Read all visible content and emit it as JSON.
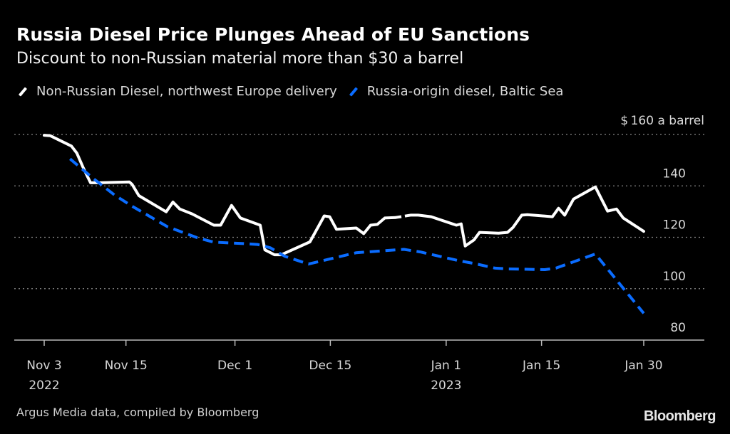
{
  "header": {
    "title": "Russia Diesel Price Plunges Ahead of EU Sanctions",
    "subtitle": "Discount to non-Russian material more than $30 a barrel"
  },
  "footer": {
    "source": "Argus Media data, compiled by Bloomberg",
    "logo": "Bloomberg"
  },
  "colors": {
    "background": "#000000",
    "non_russian": "#ffffff",
    "russian": "#0a6cff",
    "grid": "#888888",
    "axis": "#bbbbbb"
  },
  "chart_data": {
    "type": "line",
    "title": "Russia Diesel Price Plunges Ahead of EU Sanctions",
    "subtitle": "Discount to non-Russian material more than $30 a barrel",
    "xlabel": "",
    "ylabel": "$ a barrel",
    "y_unit_label": "a barrel",
    "y_prefix": "$",
    "ylim": [
      80,
      160
    ],
    "yticks": [
      80,
      100,
      120,
      140,
      160
    ],
    "y_axis_position": "right",
    "grid": true,
    "legend_position": "top-left",
    "x_start": "2022-11-03",
    "x_end": "2023-01-30",
    "xticks": [
      {
        "day": 0,
        "label": "Nov 3",
        "sublabel": "2022"
      },
      {
        "day": 12,
        "label": "Nov 15",
        "sublabel": ""
      },
      {
        "day": 28,
        "label": "Dec 1",
        "sublabel": ""
      },
      {
        "day": 42,
        "label": "Dec 15",
        "sublabel": ""
      },
      {
        "day": 59,
        "label": "Jan 1",
        "sublabel": "2023"
      },
      {
        "day": 73,
        "label": "Jan 15",
        "sublabel": ""
      },
      {
        "day": 88,
        "label": "Jan 30",
        "sublabel": ""
      }
    ],
    "series": [
      {
        "name": "Non-Russian Diesel, northwest Europe delivery",
        "style": "solid",
        "color": "#ffffff",
        "gap_dashed_between_days": [
          51.6,
          53.8
        ],
        "points": [
          [
            0,
            159.7
          ],
          [
            0.9,
            159.5
          ],
          [
            4.0,
            155.5
          ],
          [
            4.8,
            152.7
          ],
          [
            5.7,
            147.2
          ],
          [
            6.8,
            141.2
          ],
          [
            8.0,
            141.2
          ],
          [
            12.5,
            141.5
          ],
          [
            12.9,
            140.6
          ],
          [
            13.9,
            136.2
          ],
          [
            17.9,
            129.9
          ],
          [
            18.9,
            133.7
          ],
          [
            19.9,
            131.0
          ],
          [
            21.7,
            129.1
          ],
          [
            24.9,
            124.7
          ],
          [
            25.9,
            124.7
          ],
          [
            27.5,
            132.4
          ],
          [
            28.8,
            127.5
          ],
          [
            31.7,
            124.7
          ],
          [
            32.4,
            115.1
          ],
          [
            33.8,
            113.2
          ],
          [
            34.8,
            113.2
          ],
          [
            39.0,
            118.2
          ],
          [
            41.1,
            128.3
          ],
          [
            41.9,
            128.0
          ],
          [
            42.9,
            123.1
          ],
          [
            45.8,
            123.6
          ],
          [
            46.9,
            121.4
          ],
          [
            47.9,
            124.7
          ],
          [
            48.9,
            125.0
          ],
          [
            50.0,
            127.5
          ],
          [
            51.6,
            127.7
          ],
          [
            53.8,
            128.6
          ],
          [
            54.9,
            128.6
          ],
          [
            56.8,
            128.0
          ],
          [
            60.5,
            124.7
          ],
          [
            61.2,
            125.2
          ],
          [
            61.8,
            116.6
          ],
          [
            63.1,
            119.0
          ],
          [
            63.9,
            121.9
          ],
          [
            66.7,
            121.6
          ],
          [
            68.0,
            121.9
          ],
          [
            68.8,
            123.8
          ],
          [
            70.1,
            128.6
          ],
          [
            70.9,
            128.8
          ],
          [
            74.6,
            128.0
          ],
          [
            75.5,
            131.3
          ],
          [
            76.4,
            128.6
          ],
          [
            77.7,
            134.9
          ],
          [
            80.9,
            139.6
          ],
          [
            82.7,
            130.2
          ],
          [
            84.0,
            131.0
          ],
          [
            85.0,
            127.5
          ],
          [
            88.0,
            122.3
          ]
        ]
      },
      {
        "name": "Russia-origin diesel, Baltic Sea",
        "style": "dashed",
        "color": "#0a6cff",
        "points": [
          [
            3.8,
            150.5
          ],
          [
            7.1,
            143.1
          ],
          [
            10.3,
            136.5
          ],
          [
            12.9,
            132.1
          ],
          [
            18.1,
            124.1
          ],
          [
            22.4,
            119.9
          ],
          [
            24.9,
            118.1
          ],
          [
            29.0,
            117.6
          ],
          [
            31.3,
            117.2
          ],
          [
            33.2,
            115.9
          ],
          [
            35.3,
            112.6
          ],
          [
            38.8,
            109.6
          ],
          [
            42.8,
            112.1
          ],
          [
            45.8,
            114.0
          ],
          [
            50.0,
            114.8
          ],
          [
            52.8,
            115.3
          ],
          [
            55.2,
            114.3
          ],
          [
            61.0,
            110.8
          ],
          [
            63.1,
            109.8
          ],
          [
            66.2,
            108.0
          ],
          [
            68.0,
            107.7
          ],
          [
            73.5,
            107.4
          ],
          [
            75.1,
            108.0
          ],
          [
            80.9,
            113.5
          ],
          [
            88.0,
            90.4
          ]
        ]
      }
    ]
  }
}
